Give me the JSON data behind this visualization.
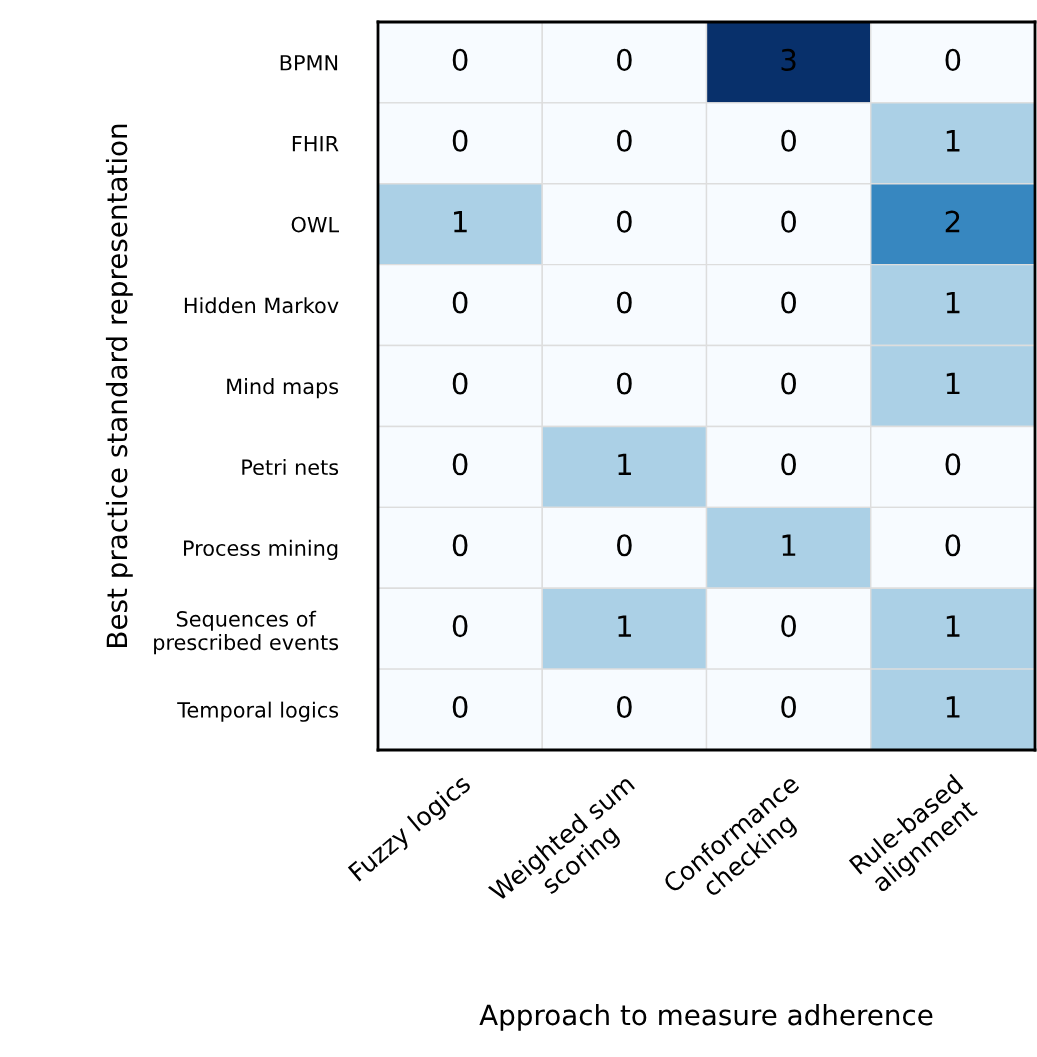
{
  "chart_data": {
    "type": "heatmap",
    "xlabel": "Approach to measure adherence",
    "ylabel": "Best practice standard representation",
    "categories": [
      "Fuzzy logics",
      "Weighted sum\nscoring",
      "Conformance\nchecking",
      "Rule-based\nalignment"
    ],
    "y_categories": [
      "BPMN",
      "FHIR",
      "OWL",
      "Hidden Markov",
      "Mind maps",
      "Petri nets",
      "Process mining",
      "Sequences of\nprescribed events",
      "Temporal logics"
    ],
    "cells": [
      [
        0,
        0,
        3,
        0
      ],
      [
        0,
        0,
        0,
        1
      ],
      [
        1,
        0,
        0,
        2
      ],
      [
        0,
        0,
        0,
        1
      ],
      [
        0,
        0,
        0,
        1
      ],
      [
        0,
        1,
        0,
        0
      ],
      [
        0,
        0,
        1,
        0
      ],
      [
        0,
        1,
        0,
        1
      ],
      [
        0,
        0,
        0,
        1
      ]
    ],
    "data_labels": true
  }
}
